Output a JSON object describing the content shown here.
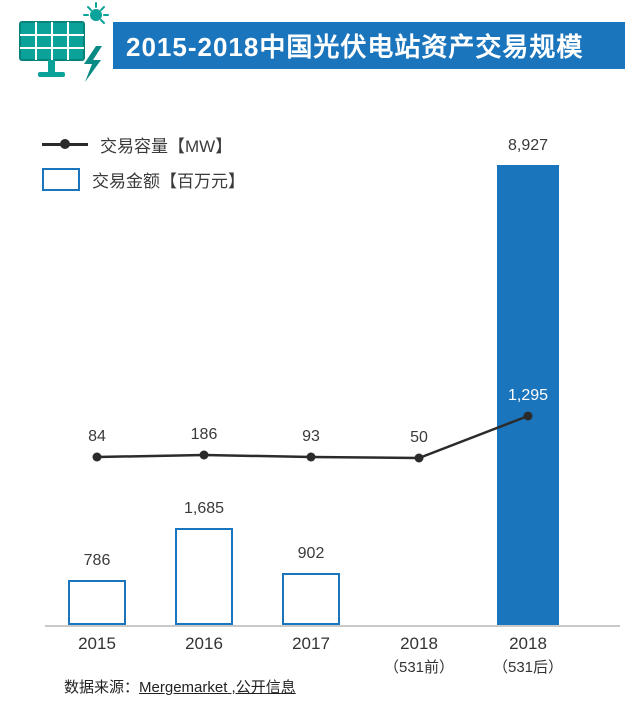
{
  "header": {
    "title": "2015-2018中国光伏电站资产交易规模",
    "banner_color": "#1B75BC",
    "icon": "solar-panel-icon",
    "icon_color": "#0BA29A"
  },
  "legend": {
    "capacity_label": "交易容量【MW】",
    "amount_label": "交易金额【百万元】"
  },
  "chart_data": {
    "type": "bar+line",
    "categories": [
      "2015",
      "2016",
      "2017",
      "2018（531前）",
      "2018（531后）"
    ],
    "series": [
      {
        "name": "交易金额【百万元】",
        "type": "bar",
        "values": [
          786,
          1685,
          902,
          null,
          8927
        ],
        "labels": [
          "786",
          "1,685",
          "902",
          "",
          "8,927"
        ],
        "bar_styles": [
          "outline",
          "outline",
          "outline",
          "none",
          "filled"
        ],
        "color": "#1B75BC"
      },
      {
        "name": "交易容量【MW】",
        "type": "line",
        "values": [
          84,
          186,
          93,
          50,
          1295
        ],
        "labels": [
          "84",
          "186",
          "93",
          "50",
          "1,295"
        ],
        "label_colors": [
          "#3A3A3A",
          "#3A3A3A",
          "#3A3A3A",
          "#3A3A3A",
          "#FFFFFF"
        ],
        "color": "#2B2B2B"
      }
    ],
    "legend_position": "top-left",
    "grid": false,
    "baseline_axis": true
  },
  "source": {
    "prefix": "数据来源：",
    "link": "Mergemarket",
    "suffix": " ,公开信息"
  }
}
